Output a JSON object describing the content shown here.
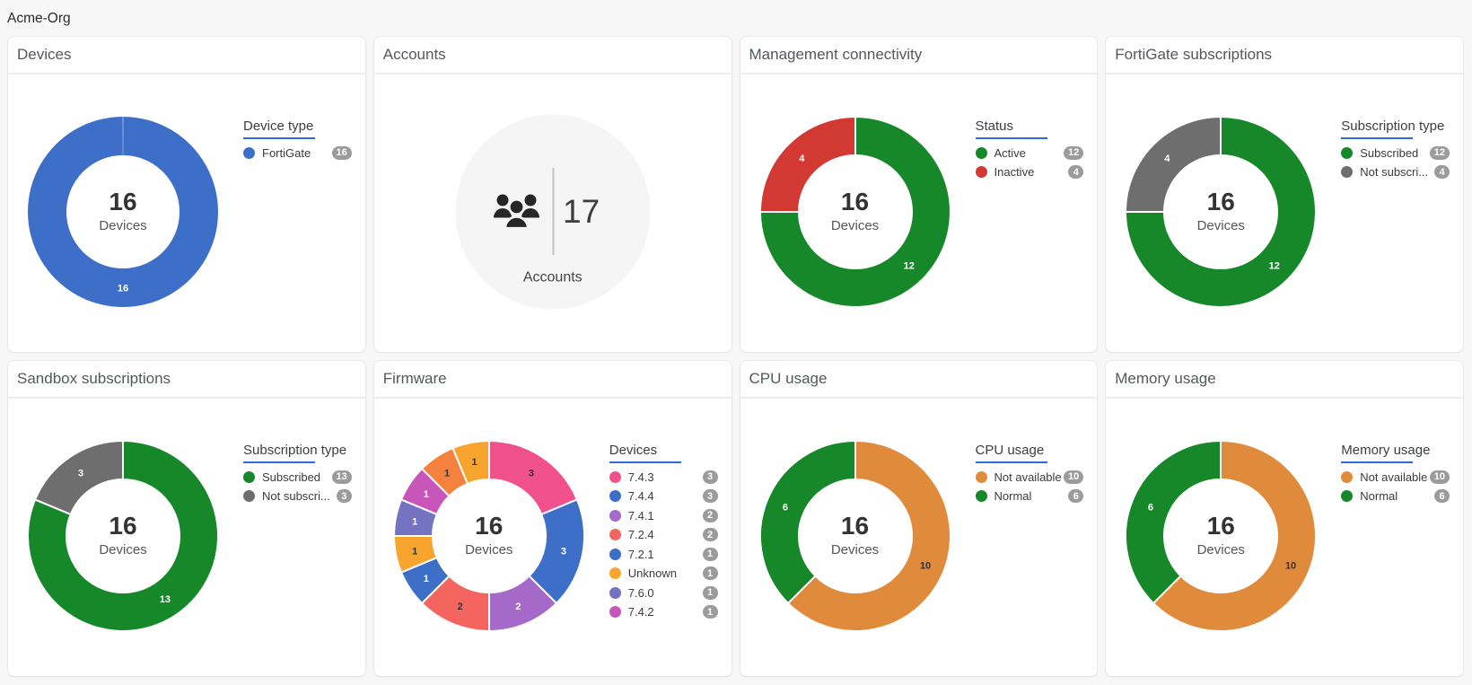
{
  "page": {
    "org_label": "Acme-Org"
  },
  "colors": {
    "background": "#f7f7f8",
    "card": "#ffffff",
    "legend_underline": "#2d6bdf",
    "badge": "#9b9b9b",
    "blue": "#3d6fc9",
    "green": "#17882a",
    "red": "#d23932",
    "gray": "#6e6e6e",
    "orange_muted": "#e08a3c",
    "pink": "#f0508c",
    "purple": "#a569c9",
    "salmon": "#f4655f",
    "amber": "#f7a52f",
    "slate_blue": "#7473c1",
    "orchid": "#c855b8",
    "orange_bright": "#f5813f"
  },
  "cards": [
    {
      "id": "devices",
      "title": "Devices",
      "type": "donut",
      "center": {
        "value": "16",
        "label": "Devices"
      },
      "legend_title": "Device type",
      "slices": [
        {
          "label": "FortiGate",
          "value": 16,
          "color": "#3d6fc9",
          "in_legend": true
        }
      ]
    },
    {
      "id": "accounts",
      "title": "Accounts",
      "type": "stat",
      "stat": {
        "value": "17",
        "label": "Accounts",
        "icon": "people-group-icon"
      }
    },
    {
      "id": "management-connectivity",
      "title": "Management connectivity",
      "type": "donut",
      "center": {
        "value": "16",
        "label": "Devices"
      },
      "legend_title": "Status",
      "slices": [
        {
          "label": "Active",
          "value": 12,
          "color": "#17882a",
          "in_legend": true
        },
        {
          "label": "Inactive",
          "value": 4,
          "color": "#d23932",
          "in_legend": true
        }
      ]
    },
    {
      "id": "fortigate-subscriptions",
      "title": "FortiGate subscriptions",
      "type": "donut",
      "center": {
        "value": "16",
        "label": "Devices"
      },
      "legend_title": "Subscription type",
      "slices": [
        {
          "label": "Subscribed",
          "value": 12,
          "color": "#17882a",
          "in_legend": true
        },
        {
          "label": "Not subscribed",
          "label_display": "Not subscri...",
          "value": 4,
          "color": "#6e6e6e",
          "in_legend": true
        }
      ]
    },
    {
      "id": "sandbox-subscriptions",
      "title": "Sandbox subscriptions",
      "type": "donut",
      "center": {
        "value": "16",
        "label": "Devices"
      },
      "legend_title": "Subscription type",
      "slices": [
        {
          "label": "Subscribed",
          "value": 13,
          "color": "#17882a",
          "in_legend": true
        },
        {
          "label": "Not subscribed",
          "label_display": "Not subscri...",
          "value": 3,
          "color": "#6e6e6e",
          "in_legend": true
        }
      ]
    },
    {
      "id": "firmware",
      "title": "Firmware",
      "type": "donut",
      "center": {
        "value": "16",
        "label": "Devices"
      },
      "legend_title": "Devices",
      "slices": [
        {
          "label": "7.4.3",
          "value": 3,
          "color": "#f0508c",
          "in_legend": true
        },
        {
          "label": "7.4.4",
          "value": 3,
          "color": "#3d6fc9",
          "in_legend": true
        },
        {
          "label": "7.4.1",
          "value": 2,
          "color": "#a569c9",
          "in_legend": true
        },
        {
          "label": "7.2.4",
          "value": 2,
          "color": "#f4655f",
          "in_legend": true
        },
        {
          "label": "7.2.1",
          "value": 1,
          "color": "#3d6fc9",
          "in_legend": true
        },
        {
          "label": "Unknown",
          "value": 1,
          "color": "#f7a52f",
          "in_legend": true
        },
        {
          "label": "7.6.0",
          "value": 1,
          "color": "#7473c1",
          "in_legend": true
        },
        {
          "label": "7.4.2",
          "value": 1,
          "color": "#c855b8",
          "in_legend": true
        },
        {
          "label": "",
          "value": 1,
          "color": "#f5813f",
          "in_legend": false
        },
        {
          "label": "",
          "value": 1,
          "color": "#f7a52f",
          "in_legend": false
        }
      ]
    },
    {
      "id": "cpu-usage",
      "title": "CPU usage",
      "type": "donut",
      "center": {
        "value": "16",
        "label": "Devices"
      },
      "legend_title": "CPU usage",
      "slices": [
        {
          "label": "Not available",
          "value": 10,
          "color": "#e08a3c",
          "in_legend": true
        },
        {
          "label": "Normal",
          "value": 6,
          "color": "#17882a",
          "in_legend": true
        }
      ]
    },
    {
      "id": "memory-usage",
      "title": "Memory usage",
      "type": "donut",
      "center": {
        "value": "16",
        "label": "Devices"
      },
      "legend_title": "Memory usage",
      "slices": [
        {
          "label": "Not available",
          "value": 10,
          "color": "#e08a3c",
          "in_legend": true
        },
        {
          "label": "Normal",
          "value": 6,
          "color": "#17882a",
          "in_legend": true
        }
      ]
    }
  ],
  "chart_data": [
    {
      "type": "pie",
      "title": "Devices",
      "center_text": "16 Devices",
      "legend_title": "Device type",
      "categories": [
        "FortiGate"
      ],
      "values": [
        16
      ],
      "legend_position": "right"
    },
    {
      "type": "table",
      "title": "Accounts",
      "categories": [
        "Accounts"
      ],
      "values": [
        17
      ]
    },
    {
      "type": "pie",
      "title": "Management connectivity",
      "center_text": "16 Devices",
      "legend_title": "Status",
      "categories": [
        "Active",
        "Inactive"
      ],
      "values": [
        12,
        4
      ],
      "legend_position": "right"
    },
    {
      "type": "pie",
      "title": "FortiGate subscriptions",
      "center_text": "16 Devices",
      "legend_title": "Subscription type",
      "categories": [
        "Subscribed",
        "Not subscribed"
      ],
      "values": [
        12,
        4
      ],
      "legend_position": "right"
    },
    {
      "type": "pie",
      "title": "Sandbox subscriptions",
      "center_text": "16 Devices",
      "legend_title": "Subscription type",
      "categories": [
        "Subscribed",
        "Not subscribed"
      ],
      "values": [
        13,
        3
      ],
      "legend_position": "right"
    },
    {
      "type": "pie",
      "title": "Firmware",
      "center_text": "16 Devices",
      "legend_title": "Devices",
      "categories": [
        "7.4.3",
        "7.4.4",
        "7.4.1",
        "7.2.4",
        "7.2.1",
        "Unknown",
        "7.6.0",
        "7.4.2",
        "",
        ""
      ],
      "values": [
        3,
        3,
        2,
        2,
        1,
        1,
        1,
        1,
        1,
        1
      ],
      "legend_position": "right"
    },
    {
      "type": "pie",
      "title": "CPU usage",
      "center_text": "16 Devices",
      "legend_title": "CPU usage",
      "categories": [
        "Not available",
        "Normal"
      ],
      "values": [
        10,
        6
      ],
      "legend_position": "right"
    },
    {
      "type": "pie",
      "title": "Memory usage",
      "center_text": "16 Devices",
      "legend_title": "Memory usage",
      "categories": [
        "Not available",
        "Normal"
      ],
      "values": [
        10,
        6
      ],
      "legend_position": "right"
    }
  ]
}
